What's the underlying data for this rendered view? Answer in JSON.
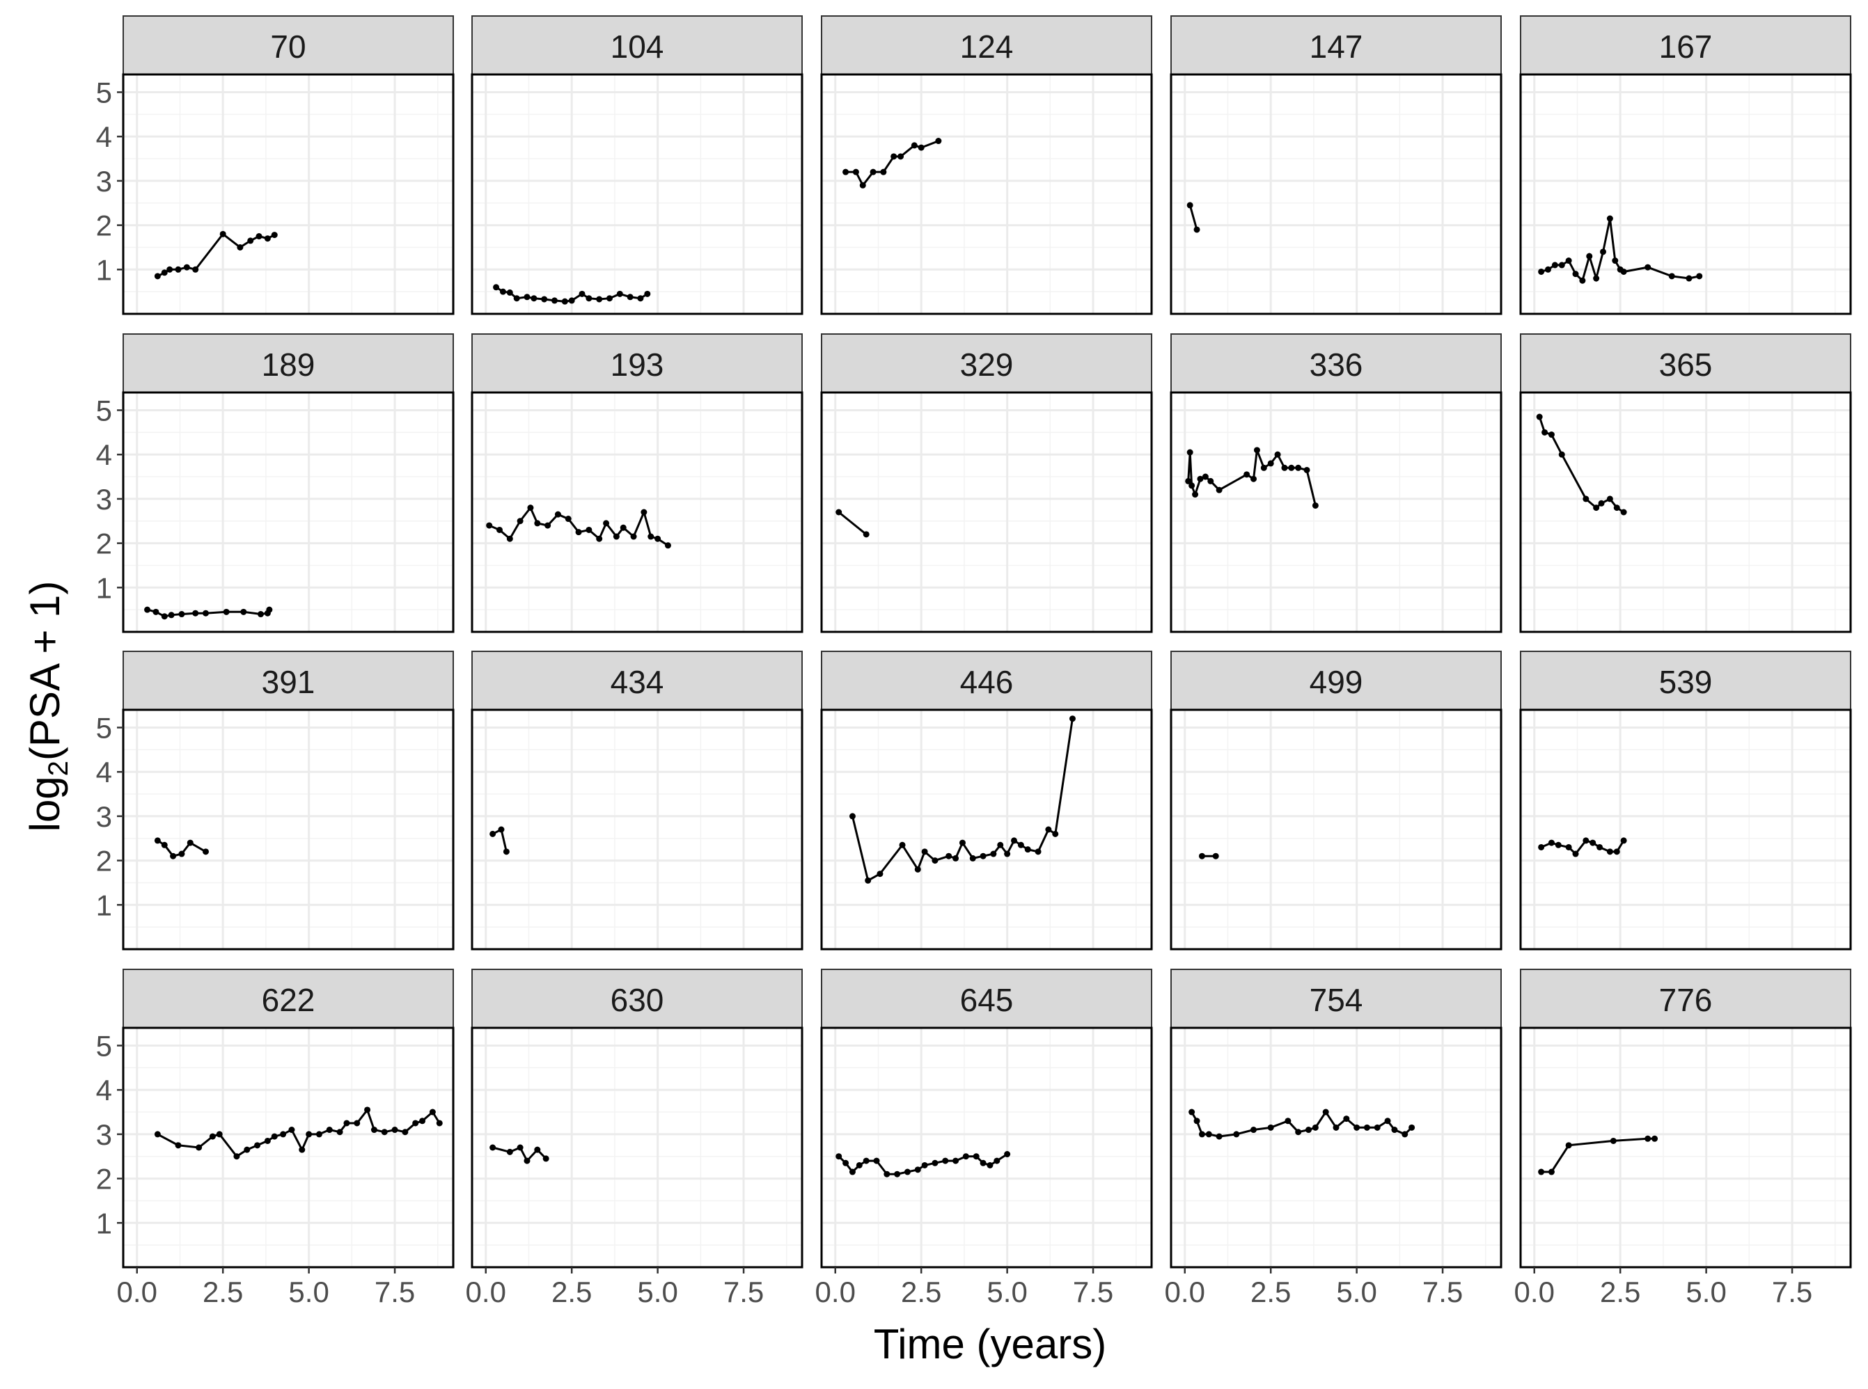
{
  "chart_data": {
    "type": "line",
    "facet_layout": "facet_wrap 4 rows x 5 columns",
    "xlabel": "Time (years)",
    "ylabel_main": "log",
    "ylabel_sub": "2",
    "ylabel_rest": "(PSA + 1)",
    "x_ticks": [
      0.0,
      2.5,
      5.0,
      7.5
    ],
    "x_tick_labels": [
      "0.0",
      "2.5",
      "5.0",
      "7.5"
    ],
    "y_ticks": [
      1,
      2,
      3,
      4,
      5
    ],
    "y_tick_labels": [
      "1",
      "2",
      "3",
      "4",
      "5"
    ],
    "xlim": [
      -0.4,
      9.2
    ],
    "ylim": [
      0.0,
      5.4
    ],
    "grid": true,
    "colors": {
      "line": "#000000",
      "strip": "#d9d9d9",
      "grid_major": "#ebebeb",
      "panel_border": "#000000"
    },
    "panels": [
      {
        "id": "70",
        "x": [
          0.6,
          0.8,
          0.95,
          1.2,
          1.45,
          1.7,
          2.5,
          3.0,
          3.3,
          3.55,
          3.8,
          4.0
        ],
        "y": [
          0.85,
          0.93,
          1.0,
          1.0,
          1.05,
          1.0,
          1.8,
          1.5,
          1.65,
          1.75,
          1.7,
          1.78
        ]
      },
      {
        "id": "104",
        "x": [
          0.3,
          0.5,
          0.7,
          0.9,
          1.2,
          1.4,
          1.7,
          2.0,
          2.3,
          2.5,
          2.8,
          3.0,
          3.3,
          3.6,
          3.9,
          4.2,
          4.5,
          4.7
        ],
        "y": [
          0.6,
          0.5,
          0.48,
          0.35,
          0.38,
          0.35,
          0.33,
          0.3,
          0.28,
          0.3,
          0.45,
          0.35,
          0.33,
          0.35,
          0.45,
          0.38,
          0.35,
          0.45
        ]
      },
      {
        "id": "124",
        "x": [
          0.3,
          0.6,
          0.8,
          1.1,
          1.4,
          1.7,
          1.9,
          2.3,
          2.5,
          3.0
        ],
        "y": [
          3.2,
          3.2,
          2.9,
          3.2,
          3.2,
          3.55,
          3.55,
          3.8,
          3.75,
          3.9
        ]
      },
      {
        "id": "147",
        "x": [
          0.15,
          0.35
        ],
        "y": [
          2.45,
          1.9
        ]
      },
      {
        "id": "167",
        "x": [
          0.2,
          0.4,
          0.6,
          0.8,
          1.0,
          1.2,
          1.4,
          1.6,
          1.8,
          2.0,
          2.2,
          2.35,
          2.5,
          2.6,
          3.3,
          4.0,
          4.5,
          4.8
        ],
        "y": [
          0.95,
          1.0,
          1.1,
          1.1,
          1.2,
          0.9,
          0.75,
          1.3,
          0.8,
          1.4,
          2.15,
          1.2,
          1.0,
          0.95,
          1.05,
          0.85,
          0.8,
          0.85
        ]
      },
      {
        "id": "189",
        "x": [
          0.3,
          0.55,
          0.8,
          1.0,
          1.3,
          1.7,
          2.0,
          2.6,
          3.1,
          3.6,
          3.8,
          3.85
        ],
        "y": [
          0.5,
          0.45,
          0.35,
          0.38,
          0.4,
          0.42,
          0.42,
          0.45,
          0.45,
          0.4,
          0.42,
          0.5
        ]
      },
      {
        "id": "193",
        "x": [
          0.1,
          0.4,
          0.7,
          1.0,
          1.3,
          1.5,
          1.8,
          2.1,
          2.4,
          2.7,
          3.0,
          3.3,
          3.5,
          3.8,
          4.0,
          4.3,
          4.6,
          4.8,
          5.0,
          5.3
        ],
        "y": [
          2.4,
          2.3,
          2.1,
          2.5,
          2.8,
          2.45,
          2.4,
          2.65,
          2.55,
          2.25,
          2.3,
          2.1,
          2.45,
          2.15,
          2.35,
          2.15,
          2.7,
          2.15,
          2.1,
          1.95
        ]
      },
      {
        "id": "329",
        "x": [
          0.1,
          0.9
        ],
        "y": [
          2.7,
          2.2
        ]
      },
      {
        "id": "336",
        "x": [
          0.1,
          0.15,
          0.2,
          0.3,
          0.45,
          0.6,
          0.75,
          1.0,
          1.8,
          2.0,
          2.1,
          2.3,
          2.5,
          2.7,
          2.9,
          3.1,
          3.3,
          3.55,
          3.8
        ],
        "y": [
          3.4,
          4.05,
          3.3,
          3.1,
          3.45,
          3.5,
          3.4,
          3.2,
          3.55,
          3.45,
          4.1,
          3.7,
          3.8,
          4.0,
          3.7,
          3.7,
          3.7,
          3.65,
          2.85
        ]
      },
      {
        "id": "365",
        "x": [
          0.15,
          0.3,
          0.5,
          0.8,
          1.5,
          1.8,
          1.95,
          2.2,
          2.4,
          2.6
        ],
        "y": [
          4.85,
          4.5,
          4.45,
          4.0,
          3.0,
          2.8,
          2.9,
          3.0,
          2.8,
          2.7
        ]
      },
      {
        "id": "391",
        "x": [
          0.6,
          0.8,
          1.05,
          1.3,
          1.55,
          2.0
        ],
        "y": [
          2.45,
          2.35,
          2.1,
          2.15,
          2.4,
          2.2
        ]
      },
      {
        "id": "434",
        "x": [
          0.2,
          0.45,
          0.6
        ],
        "y": [
          2.6,
          2.7,
          2.2
        ]
      },
      {
        "id": "446",
        "x": [
          0.5,
          0.95,
          1.3,
          1.95,
          2.4,
          2.6,
          2.9,
          3.3,
          3.5,
          3.7,
          4.0,
          4.3,
          4.6,
          4.8,
          5.0,
          5.2,
          5.4,
          5.6,
          5.9,
          6.2,
          6.4,
          6.9
        ],
        "y": [
          3.0,
          1.55,
          1.7,
          2.35,
          1.8,
          2.2,
          2.0,
          2.1,
          2.05,
          2.4,
          2.05,
          2.1,
          2.15,
          2.35,
          2.15,
          2.45,
          2.35,
          2.25,
          2.2,
          2.7,
          2.6,
          5.2
        ]
      },
      {
        "id": "499",
        "x": [
          0.5,
          0.9
        ],
        "y": [
          2.1,
          2.1
        ]
      },
      {
        "id": "539",
        "x": [
          0.2,
          0.5,
          0.7,
          1.0,
          1.2,
          1.5,
          1.7,
          1.9,
          2.2,
          2.4,
          2.6
        ],
        "y": [
          2.3,
          2.4,
          2.35,
          2.3,
          2.15,
          2.45,
          2.4,
          2.3,
          2.2,
          2.2,
          2.45
        ]
      },
      {
        "id": "622",
        "x": [
          0.6,
          1.2,
          1.8,
          2.2,
          2.4,
          2.9,
          3.2,
          3.5,
          3.8,
          4.0,
          4.25,
          4.5,
          4.8,
          5.0,
          5.3,
          5.6,
          5.9,
          6.1,
          6.4,
          6.7,
          6.9,
          7.2,
          7.5,
          7.8,
          8.1,
          8.3,
          8.6,
          8.8
        ],
        "y": [
          3.0,
          2.75,
          2.7,
          2.95,
          3.0,
          2.5,
          2.65,
          2.75,
          2.85,
          2.95,
          3.0,
          3.1,
          2.65,
          3.0,
          3.0,
          3.1,
          3.05,
          3.25,
          3.25,
          3.55,
          3.1,
          3.05,
          3.1,
          3.05,
          3.25,
          3.3,
          3.5,
          3.25
        ]
      },
      {
        "id": "630",
        "x": [
          0.2,
          0.7,
          1.0,
          1.2,
          1.5,
          1.75
        ],
        "y": [
          2.7,
          2.6,
          2.7,
          2.4,
          2.65,
          2.45
        ]
      },
      {
        "id": "645",
        "x": [
          0.1,
          0.3,
          0.5,
          0.7,
          0.9,
          1.2,
          1.5,
          1.8,
          2.1,
          2.4,
          2.6,
          2.9,
          3.2,
          3.5,
          3.8,
          4.1,
          4.3,
          4.5,
          4.7,
          5.0
        ],
        "y": [
          2.5,
          2.35,
          2.15,
          2.3,
          2.4,
          2.4,
          2.1,
          2.1,
          2.15,
          2.2,
          2.3,
          2.35,
          2.4,
          2.4,
          2.5,
          2.5,
          2.35,
          2.3,
          2.4,
          2.55
        ]
      },
      {
        "id": "754",
        "x": [
          0.2,
          0.35,
          0.5,
          0.7,
          1.0,
          1.5,
          2.0,
          2.5,
          3.0,
          3.3,
          3.6,
          3.8,
          4.1,
          4.4,
          4.7,
          5.0,
          5.3,
          5.6,
          5.9,
          6.1,
          6.4,
          6.6
        ],
        "y": [
          3.5,
          3.3,
          3.0,
          3.0,
          2.95,
          3.0,
          3.1,
          3.15,
          3.3,
          3.05,
          3.1,
          3.15,
          3.5,
          3.15,
          3.35,
          3.15,
          3.15,
          3.15,
          3.3,
          3.1,
          3.0,
          3.15
        ]
      },
      {
        "id": "776",
        "x": [
          0.2,
          0.5,
          1.0,
          2.3,
          3.3,
          3.5
        ],
        "y": [
          2.15,
          2.15,
          2.75,
          2.85,
          2.9,
          2.9
        ]
      }
    ]
  }
}
